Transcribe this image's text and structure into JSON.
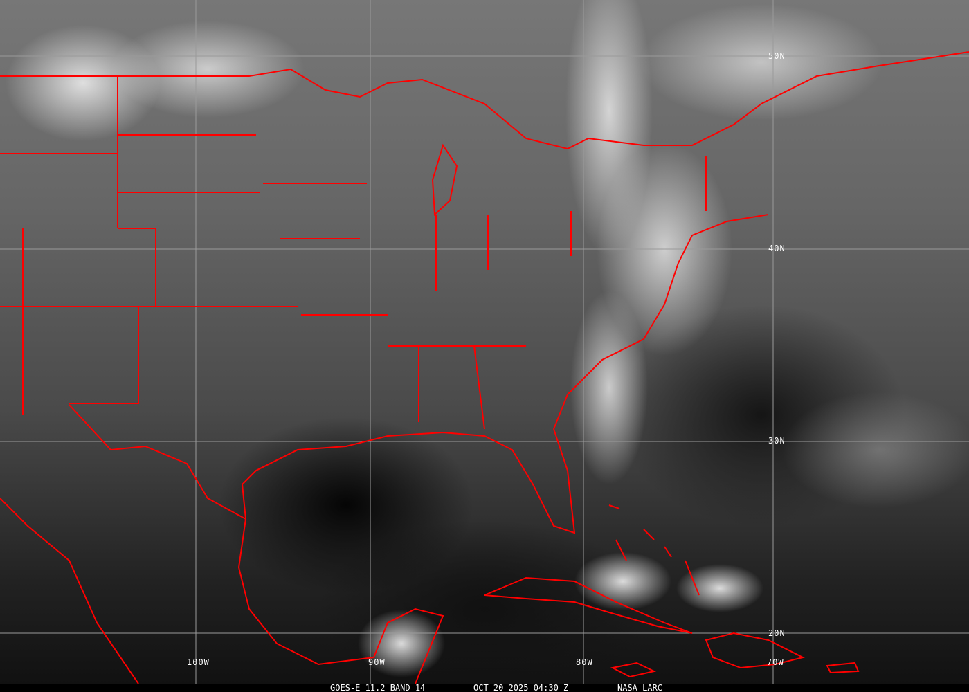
{
  "caption": {
    "satellite_band": "GOES-E 11.2 BAND 14",
    "datetime": "OCT 20 2025 04:30 Z",
    "credit": "NASA LARC"
  },
  "grid": {
    "latitude_labels": [
      "50N",
      "40N",
      "30N",
      "20N"
    ],
    "longitude_labels": [
      "100W",
      "90W",
      "80W",
      "70W"
    ]
  },
  "colors": {
    "boundaries": "#ff0000",
    "grid": "#9a9a9a"
  }
}
